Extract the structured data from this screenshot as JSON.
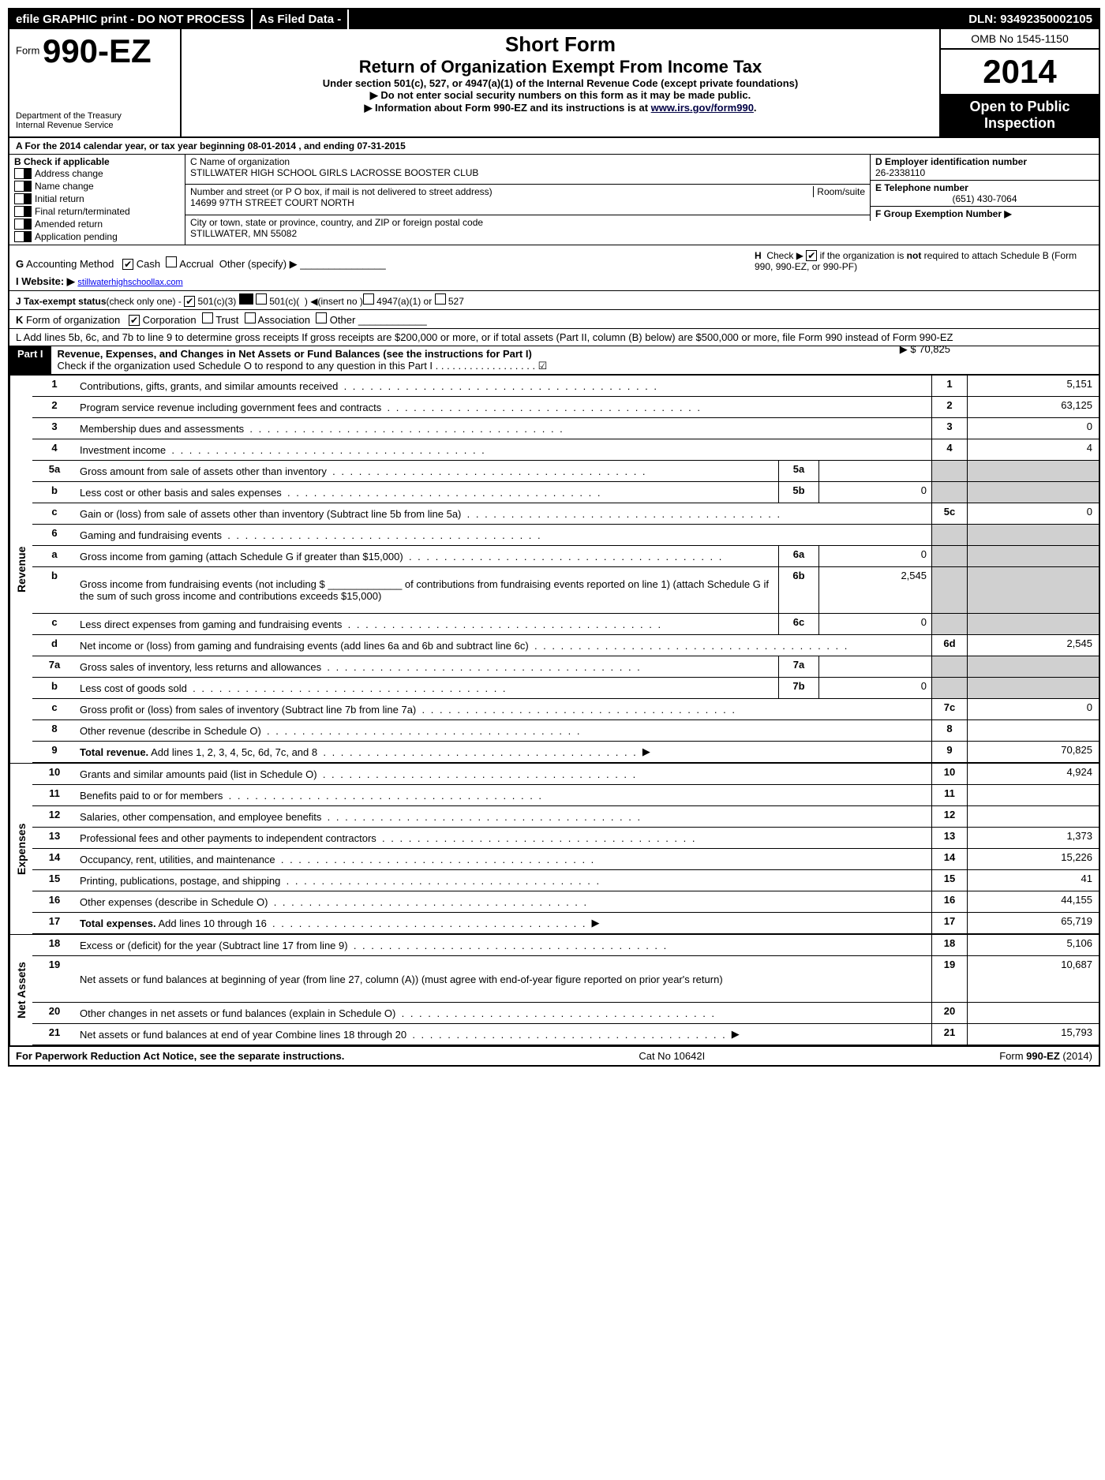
{
  "topbar": {
    "efile": "efile GRAPHIC print - DO NOT PROCESS",
    "asfiled": "As Filed Data -",
    "dln": "DLN: 93492350002105"
  },
  "header": {
    "form_prefix": "Form",
    "form_num": "990-EZ",
    "dept1": "Department of the Treasury",
    "dept2": "Internal Revenue Service",
    "title1": "Short Form",
    "title2": "Return of Organization Exempt From Income Tax",
    "subtitle": "Under section 501(c), 527, or 4947(a)(1) of the Internal Revenue Code (except private foundations)",
    "note1": "▶ Do not enter social security numbers on this form as it may be made public.",
    "note2_pre": "▶ Information about Form 990-EZ and its instructions is at ",
    "note2_link": "www.irs.gov/form990",
    "omb": "OMB No 1545-1150",
    "year": "2014",
    "open1": "Open to Public",
    "open2": "Inspection"
  },
  "lineA": "A  For the 2014 calendar year, or tax year beginning 08-01-2014                                    , and ending 07-31-2015",
  "colB": {
    "title": "B  Check if applicable",
    "items": [
      "Address change",
      "Name change",
      "Initial return",
      "Final return/terminated",
      "Amended return",
      "Application pending"
    ]
  },
  "colC": {
    "name_label": "C Name of organization",
    "name": "STILLWATER HIGH SCHOOL GIRLS LACROSSE BOOSTER CLUB",
    "street_label": "Number and street (or P  O  box, if mail is not delivered to street address)",
    "room_label": "Room/suite",
    "street": "14699 97TH STREET COURT NORTH",
    "city_label": "City or town, state or province, country, and ZIP or foreign postal code",
    "city": "STILLWATER, MN  55082"
  },
  "colD": {
    "ein_label": "D Employer identification number",
    "ein": "26-2338110",
    "tel_label": "E Telephone number",
    "tel": "(651) 430-7064",
    "grp_label": "F Group Exemption Number   ▶"
  },
  "lineG": "G Accounting Method   ☑ Cash  ☐ Accrual  Other (specify) ▶ _______________",
  "lineH": "H  Check ▶ ☑ if the organization is not required to attach Schedule B (Form 990, 990-EZ, or 990-PF)",
  "lineI_pre": "I Website: ▶ ",
  "lineI_link": "stillwaterhighschoollax.com",
  "lineJ": "J Tax-exempt status (check only one) - ☑ 501(c)(3)  ☐ 501(c)(  ) ◀(insert no ) ☐ 4947(a)(1) or ☐ 527",
  "lineK": "K Form of organization   ☑ Corporation  ☐ Trust  ☐ Association  ☐ Other ____________",
  "lineL": "L Add lines 5b, 6c, and 7b to line 9 to determine gross receipts  If gross receipts are $200,000 or more, or if total assets (Part II, column (B) below) are $500,000 or more, file Form 990 instead of Form 990-EZ",
  "lineL_amt_label": "▶ $ 70,825",
  "part1": {
    "label": "Part I",
    "title": "Revenue, Expenses, and Changes in Net Assets or Fund Balances (see the instructions for Part I)",
    "check": "Check if the organization used Schedule O to respond to any question in this Part I  .  .  .  .  .  .  .  .  .  .  .  .  .  .  .  .  .  .  ☑"
  },
  "sections": {
    "revenue_label": "Revenue",
    "expenses_label": "Expenses",
    "netassets_label": "Net Assets"
  },
  "rows": [
    {
      "ln": "1",
      "desc": "Contributions, gifts, grants, and similar amounts received",
      "num": "1",
      "amt": "5,151"
    },
    {
      "ln": "2",
      "desc": "Program service revenue including government fees and contracts",
      "num": "2",
      "amt": "63,125"
    },
    {
      "ln": "3",
      "desc": "Membership dues and assessments",
      "num": "3",
      "amt": "0"
    },
    {
      "ln": "4",
      "desc": "Investment income",
      "num": "4",
      "amt": "4"
    },
    {
      "ln": "5a",
      "desc": "Gross amount from sale of assets other than inventory",
      "mini": "5a",
      "minival": "",
      "gray": true
    },
    {
      "ln": "b",
      "desc": "Less  cost or other basis and sales expenses",
      "mini": "5b",
      "minival": "0",
      "gray": true
    },
    {
      "ln": "c",
      "desc": "Gain or (loss) from sale of assets other than inventory (Subtract line 5b from line 5a)",
      "num": "5c",
      "amt": "0"
    },
    {
      "ln": "6",
      "desc": "Gaming and fundraising events",
      "gray": true,
      "nonum": true
    },
    {
      "ln": "a",
      "desc": "Gross income from gaming (attach Schedule G if greater than $15,000)",
      "mini": "6a",
      "minival": "0",
      "gray": true
    },
    {
      "ln": "b",
      "desc": "Gross income from fundraising events (not including $ _____________ of contributions from fundraising events reported on line 1) (attach Schedule G if the sum of such gross income and contributions exceeds $15,000)",
      "mini": "6b",
      "minival": "2,545",
      "gray": true,
      "tall": true
    },
    {
      "ln": "c",
      "desc": "Less  direct expenses from gaming and fundraising events",
      "mini": "6c",
      "minival": "0",
      "gray": true
    },
    {
      "ln": "d",
      "desc": "Net income or (loss) from gaming and fundraising events (add lines 6a and 6b and subtract line 6c)",
      "num": "6d",
      "amt": "2,545"
    },
    {
      "ln": "7a",
      "desc": "Gross sales of inventory, less returns and allowances",
      "mini": "7a",
      "minival": "",
      "gray": true
    },
    {
      "ln": "b",
      "desc": "Less  cost of goods sold",
      "mini": "7b",
      "minival": "0",
      "gray": true
    },
    {
      "ln": "c",
      "desc": "Gross profit or (loss) from sales of inventory (Subtract line 7b from line 7a)",
      "num": "7c",
      "amt": "0"
    },
    {
      "ln": "8",
      "desc": "Other revenue (describe in Schedule O)",
      "num": "8",
      "amt": ""
    },
    {
      "ln": "9",
      "desc": "Total revenue. Add lines 1, 2, 3, 4, 5c, 6d, 7c, and 8",
      "num": "9",
      "amt": "70,825",
      "bold": true,
      "arrow": true
    }
  ],
  "exp_rows": [
    {
      "ln": "10",
      "desc": "Grants and similar amounts paid (list in Schedule O)",
      "num": "10",
      "amt": "4,924"
    },
    {
      "ln": "11",
      "desc": "Benefits paid to or for members",
      "num": "11",
      "amt": ""
    },
    {
      "ln": "12",
      "desc": "Salaries, other compensation, and employee benefits",
      "num": "12",
      "amt": ""
    },
    {
      "ln": "13",
      "desc": "Professional fees and other payments to independent contractors",
      "num": "13",
      "amt": "1,373"
    },
    {
      "ln": "14",
      "desc": "Occupancy, rent, utilities, and maintenance",
      "num": "14",
      "amt": "15,226"
    },
    {
      "ln": "15",
      "desc": "Printing, publications, postage, and shipping",
      "num": "15",
      "amt": "41"
    },
    {
      "ln": "16",
      "desc": "Other expenses (describe in Schedule O)",
      "num": "16",
      "amt": "44,155"
    },
    {
      "ln": "17",
      "desc": "Total expenses. Add lines 10 through 16",
      "num": "17",
      "amt": "65,719",
      "bold": true,
      "arrow": true
    }
  ],
  "na_rows": [
    {
      "ln": "18",
      "desc": "Excess or (deficit) for the year (Subtract line 17 from line 9)",
      "num": "18",
      "amt": "5,106"
    },
    {
      "ln": "19",
      "desc": "Net assets or fund balances at beginning of year (from line 27, column (A)) (must agree with end-of-year figure reported on prior year's return)",
      "num": "19",
      "amt": "10,687",
      "tall": true
    },
    {
      "ln": "20",
      "desc": "Other changes in net assets or fund balances (explain in Schedule O)",
      "num": "20",
      "amt": ""
    },
    {
      "ln": "21",
      "desc": "Net assets or fund balances at end of year Combine lines 18 through 20",
      "num": "21",
      "amt": "15,793",
      "arrow": true
    }
  ],
  "footer": {
    "left": "For Paperwork Reduction Act Notice, see the separate instructions.",
    "mid": "Cat No  10642I",
    "right": "Form 990-EZ (2014)"
  }
}
